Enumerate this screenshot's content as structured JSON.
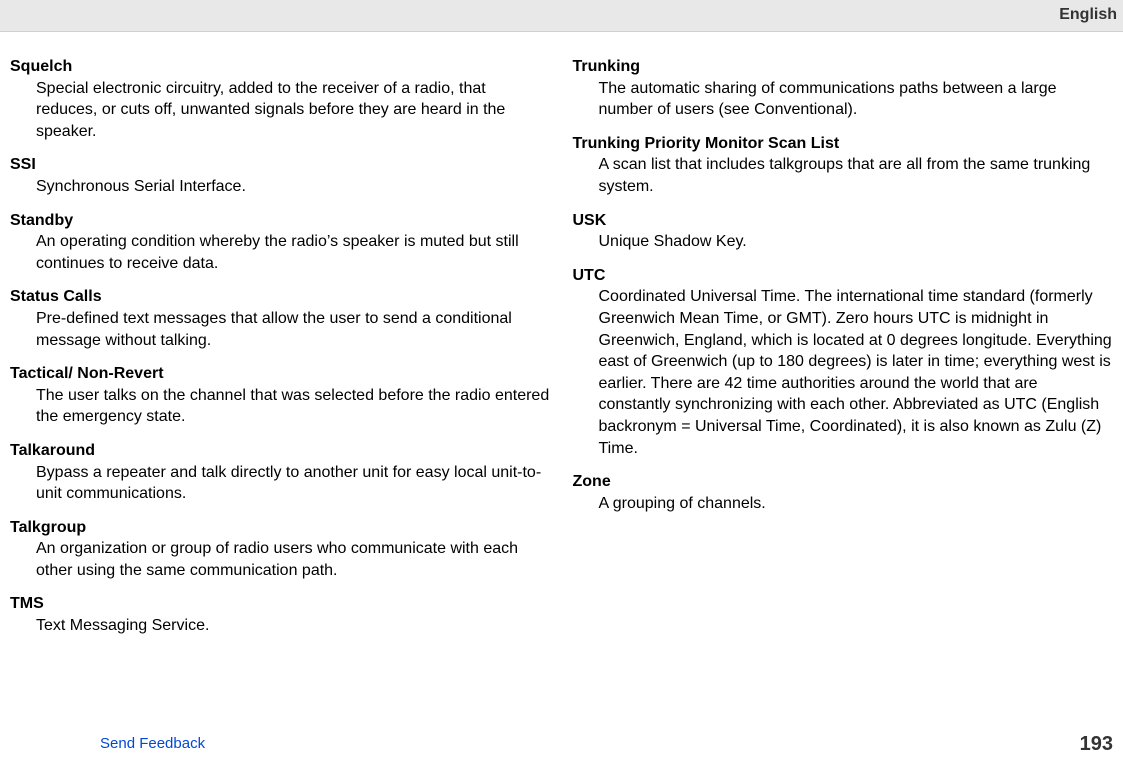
{
  "header": {
    "language": "English"
  },
  "footer": {
    "feedback": "Send Feedback",
    "page": "193"
  },
  "left": [
    {
      "term": "Squelch",
      "def": "Special electronic circuitry, added to the receiver of a radio, that reduces, or cuts off, unwanted signals before they are heard in the speaker."
    },
    {
      "term": "SSI",
      "def": "Synchronous Serial Interface."
    },
    {
      "term": "Standby",
      "def": "An operating condition whereby the radio’s speaker is muted but still continues to receive data."
    },
    {
      "term": "Status Calls",
      "def": "Pre-defined text messages that allow the user to send a conditional message without talking."
    },
    {
      "term": "Tactical/ Non-Revert",
      "def": "The user talks on the channel that was selected before the radio entered the emergency state."
    },
    {
      "term": "Talkaround",
      "def": "Bypass a repeater and talk directly to another unit for easy local unit-to-unit communications."
    },
    {
      "term": "Talkgroup",
      "def": "An organization or group of radio users who communicate with each other using the same communication path."
    },
    {
      "term": "TMS",
      "def": "Text Messaging Service."
    }
  ],
  "right": [
    {
      "term": "Trunking",
      "def": "The automatic sharing of communications paths between a large number of users (see Conventional)."
    },
    {
      "term": "Trunking Priority Monitor Scan List",
      "def": "A scan list that includes talkgroups that are all from the same trunking system."
    },
    {
      "term": "USK",
      "def": "Unique Shadow Key."
    },
    {
      "term": "UTC",
      "def": "Coordinated Universal Time. The international time standard (formerly Greenwich Mean Time, or GMT). Zero hours UTC is midnight in Greenwich, England, which is located at 0 degrees longitude. Everything east of Greenwich (up to 180 degrees) is later in time; everything west is earlier. There are 42 time authorities around the world that are constantly synchronizing with each other. Abbreviated as UTC (English backronym = Universal Time, Coordinated), it is also known as Zulu (Z) Time."
    },
    {
      "term": "Zone",
      "def": "A grouping of channels."
    }
  ]
}
